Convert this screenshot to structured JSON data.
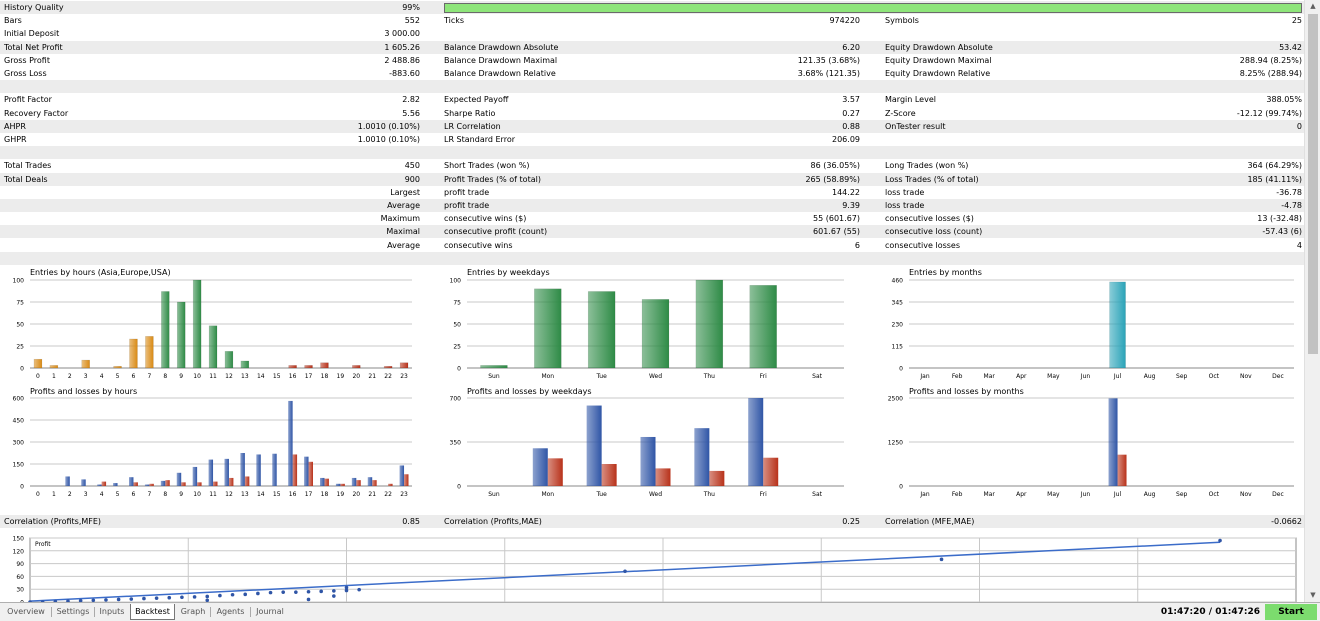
{
  "report": {
    "rows": [
      {
        "shaded": true,
        "c": [
          "History Quality",
          "99%",
          "",
          "",
          "",
          ""
        ],
        "quality_bar": 1.0
      },
      {
        "shaded": false,
        "c": [
          "Bars",
          "552",
          "Ticks",
          "974220",
          "Symbols",
          "25"
        ]
      },
      {
        "shaded": false,
        "c": [
          "Initial Deposit",
          "3 000.00",
          "",
          "",
          "",
          ""
        ]
      },
      {
        "shaded": true,
        "c": [
          "Total Net Profit",
          "1 605.26",
          "Balance Drawdown Absolute",
          "6.20",
          "Equity Drawdown Absolute",
          "53.42"
        ]
      },
      {
        "shaded": false,
        "c": [
          "Gross Profit",
          "2 488.86",
          "Balance Drawdown Maximal",
          "121.35 (3.68%)",
          "Equity Drawdown Maximal",
          "288.94 (8.25%)"
        ]
      },
      {
        "shaded": false,
        "c": [
          "Gross Loss",
          "-883.60",
          "Balance Drawdown Relative",
          "3.68% (121.35)",
          "Equity Drawdown Relative",
          "8.25% (288.94)"
        ]
      },
      {
        "shaded": true,
        "c": [
          "",
          "",
          "",
          "",
          "",
          ""
        ]
      },
      {
        "shaded": false,
        "c": [
          "Profit Factor",
          "2.82",
          "Expected Payoff",
          "3.57",
          "Margin Level",
          "388.05%"
        ]
      },
      {
        "shaded": false,
        "c": [
          "Recovery Factor",
          "5.56",
          "Sharpe Ratio",
          "0.27",
          "Z-Score",
          "-12.12 (99.74%)"
        ]
      },
      {
        "shaded": true,
        "c": [
          "AHPR",
          "1.0010 (0.10%)",
          "LR Correlation",
          "0.88",
          "OnTester result",
          "0"
        ]
      },
      {
        "shaded": false,
        "c": [
          "GHPR",
          "1.0010 (0.10%)",
          "LR Standard Error",
          "206.09",
          "",
          ""
        ]
      },
      {
        "shaded": true,
        "c": [
          "",
          "",
          "",
          "",
          "",
          ""
        ]
      },
      {
        "shaded": false,
        "c": [
          "Total Trades",
          "450",
          "Short Trades (won %)",
          "86 (36.05%)",
          "Long Trades (won %)",
          "364 (64.29%)"
        ]
      },
      {
        "shaded": true,
        "c": [
          "Total Deals",
          "900",
          "Profit Trades (% of total)",
          "265 (58.89%)",
          "Loss Trades (% of total)",
          "185 (41.11%)"
        ]
      },
      {
        "shaded": false,
        "c": [
          "",
          "Largest",
          "profit trade",
          "144.22",
          "loss trade",
          "-36.78"
        ]
      },
      {
        "shaded": true,
        "c": [
          "",
          "Average",
          "profit trade",
          "9.39",
          "loss trade",
          "-4.78"
        ]
      },
      {
        "shaded": false,
        "c": [
          "",
          "Maximum",
          "consecutive wins ($)",
          "55 (601.67)",
          "consecutive losses ($)",
          "13 (-32.48)"
        ]
      },
      {
        "shaded": true,
        "c": [
          "",
          "Maximal",
          "consecutive profit (count)",
          "601.67 (55)",
          "consecutive loss (count)",
          "-57.43 (6)"
        ]
      },
      {
        "shaded": false,
        "c": [
          "",
          "Average",
          "consecutive wins",
          "6",
          "consecutive losses",
          "4"
        ]
      },
      {
        "shaded": true,
        "c": [
          "",
          "",
          "",
          "",
          "",
          ""
        ]
      }
    ],
    "correlation": [
      "Correlation (Profits,MFE)",
      "0.85",
      "Correlation (Profits,MAE)",
      "0.25",
      "Correlation (MFE,MAE)",
      "-0.0662"
    ]
  },
  "colors": {
    "quality_bar": "#8ee57a",
    "green_bar": "#2e8b46",
    "orange_bar": "#d98a14",
    "red_bar": "#b8321a",
    "blue_bar": "#2f55a6",
    "teal_bar": "#2aa3b8",
    "grid": "#c8c8c8",
    "line": "#3b6cc9"
  },
  "chart_data": [
    {
      "type": "bar",
      "title": "Entries by hours (Asia,Europe,USA)",
      "categories": [
        "0",
        "1",
        "2",
        "3",
        "4",
        "5",
        "6",
        "7",
        "8",
        "9",
        "10",
        "11",
        "12",
        "13",
        "14",
        "15",
        "16",
        "17",
        "18",
        "19",
        "20",
        "21",
        "22",
        "23"
      ],
      "yticks": [
        "100",
        "75",
        "50",
        "25",
        "0"
      ],
      "ylim": [
        0,
        100
      ],
      "series": [
        {
          "values": [
            10,
            3,
            0,
            9,
            0,
            2,
            33,
            36,
            87,
            75,
            100,
            48,
            19,
            8,
            0,
            0,
            3,
            3,
            6,
            0,
            3,
            0,
            2,
            6
          ]
        }
      ],
      "bar_colors": [
        "orange",
        "orange",
        "orange",
        "orange",
        "orange",
        "orange",
        "orange",
        "orange",
        "green",
        "green",
        "green",
        "green",
        "green",
        "green",
        "green",
        "red",
        "red",
        "red",
        "red",
        "red",
        "red",
        "red",
        "red",
        "red"
      ]
    },
    {
      "type": "bar",
      "title": "Entries by weekdays",
      "categories": [
        "Sun",
        "Mon",
        "Tue",
        "Wed",
        "Thu",
        "Fri",
        "Sat"
      ],
      "yticks": [
        "100",
        "75",
        "50",
        "25",
        "0"
      ],
      "ylim": [
        0,
        100
      ],
      "series": [
        {
          "values": [
            3,
            90,
            87,
            78,
            100,
            94,
            0
          ]
        }
      ]
    },
    {
      "type": "bar",
      "title": "Entries by months",
      "categories": [
        "Jan",
        "Feb",
        "Mar",
        "Apr",
        "May",
        "Jun",
        "Jul",
        "Aug",
        "Sep",
        "Oct",
        "Nov",
        "Dec"
      ],
      "yticks": [
        "460",
        "345",
        "230",
        "115",
        "0"
      ],
      "ylim": [
        0,
        460
      ],
      "series": [
        {
          "values": [
            0,
            0,
            0,
            0,
            0,
            0,
            450,
            0,
            0,
            0,
            0,
            0
          ]
        }
      ]
    },
    {
      "type": "bar",
      "title": "Profits and losses by hours",
      "categories": [
        "0",
        "1",
        "2",
        "3",
        "4",
        "5",
        "6",
        "7",
        "8",
        "9",
        "10",
        "11",
        "12",
        "13",
        "14",
        "15",
        "16",
        "17",
        "18",
        "19",
        "20",
        "21",
        "22",
        "23"
      ],
      "yticks": [
        "600",
        "450",
        "300",
        "150",
        "0"
      ],
      "ylim": [
        0,
        600
      ],
      "series": [
        {
          "values": [
            0,
            0,
            65,
            45,
            10,
            20,
            60,
            10,
            35,
            90,
            130,
            180,
            185,
            225,
            215,
            220,
            580,
            200,
            55,
            15,
            55,
            60,
            0,
            140
          ]
        },
        {
          "values": [
            0,
            0,
            0,
            0,
            30,
            0,
            25,
            15,
            40,
            25,
            25,
            30,
            55,
            65,
            0,
            0,
            215,
            165,
            50,
            15,
            40,
            40,
            15,
            80
          ]
        }
      ]
    },
    {
      "type": "bar",
      "title": "Profits and losses by weekdays",
      "categories": [
        "Sun",
        "Mon",
        "Tue",
        "Wed",
        "Thu",
        "Fri",
        "Sat"
      ],
      "yticks": [
        "700",
        "350",
        "0"
      ],
      "ylim": [
        0,
        700
      ],
      "series": [
        {
          "values": [
            0,
            300,
            640,
            390,
            460,
            700,
            0
          ]
        },
        {
          "values": [
            0,
            220,
            175,
            140,
            120,
            225,
            0
          ]
        }
      ]
    },
    {
      "type": "bar",
      "title": "Profits and losses by months",
      "categories": [
        "Jan",
        "Feb",
        "Mar",
        "Apr",
        "May",
        "Jun",
        "Jul",
        "Aug",
        "Sep",
        "Oct",
        "Nov",
        "Dec"
      ],
      "yticks": [
        "2500",
        "1250",
        "0"
      ],
      "ylim": [
        0,
        2500
      ],
      "series": [
        {
          "values": [
            0,
            0,
            0,
            0,
            0,
            0,
            2490,
            0,
            0,
            0,
            0,
            0
          ]
        },
        {
          "values": [
            0,
            0,
            0,
            0,
            0,
            0,
            890,
            0,
            0,
            0,
            0,
            0
          ]
        }
      ]
    },
    {
      "type": "scatter",
      "title": "Profit",
      "yticks": [
        "150",
        "120",
        "90",
        "60",
        "30",
        "0"
      ],
      "ylim": [
        0,
        150
      ],
      "xlim": [
        0,
        100
      ],
      "points": [
        [
          0,
          0
        ],
        [
          1,
          0
        ],
        [
          2,
          1
        ],
        [
          3,
          2
        ],
        [
          4,
          3
        ],
        [
          5,
          4
        ],
        [
          6,
          5
        ],
        [
          7,
          6
        ],
        [
          8,
          7
        ],
        [
          9,
          8
        ],
        [
          10,
          9
        ],
        [
          11,
          10
        ],
        [
          12,
          11
        ],
        [
          13,
          12
        ],
        [
          14,
          13
        ],
        [
          15,
          15
        ],
        [
          16,
          17
        ],
        [
          17,
          18
        ],
        [
          18,
          20
        ],
        [
          19,
          22
        ],
        [
          20,
          23
        ],
        [
          21,
          23
        ],
        [
          22,
          24
        ],
        [
          23,
          25
        ],
        [
          24,
          26
        ],
        [
          25,
          27
        ],
        [
          26,
          29
        ],
        [
          14,
          4
        ],
        [
          22,
          6
        ],
        [
          24,
          14
        ],
        [
          25,
          34
        ],
        [
          47,
          72
        ],
        [
          72,
          100
        ],
        [
          94,
          144
        ]
      ],
      "trend": [
        [
          0,
          2
        ],
        [
          94,
          140
        ]
      ]
    }
  ],
  "tabs": [
    {
      "label": "Overview",
      "active": false
    },
    {
      "label": "Settings",
      "active": false
    },
    {
      "label": "Inputs",
      "active": false
    },
    {
      "label": "Backtest",
      "active": true
    },
    {
      "label": "Graph",
      "active": false
    },
    {
      "label": "Agents",
      "active": false
    },
    {
      "label": "Journal",
      "active": false
    }
  ],
  "status": {
    "timer": "01:47:20 / 01:47:26",
    "start_label": "Start"
  },
  "scroll": {
    "up_icon": "arrow-up-icon",
    "down_icon": "arrow-down-icon"
  }
}
